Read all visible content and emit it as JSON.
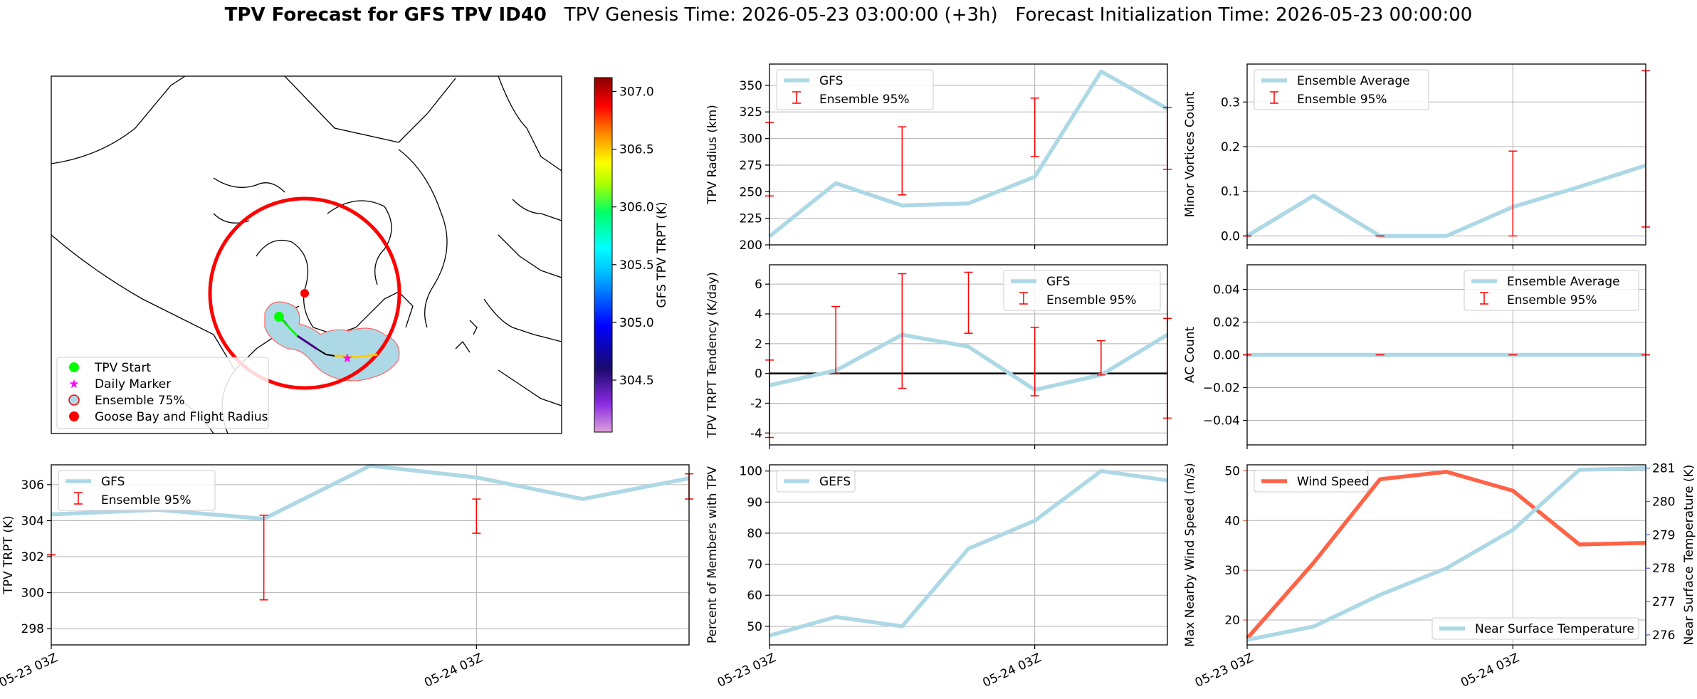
{
  "figure": {
    "title_bold": "TPV Forecast for GFS TPV ID40",
    "title_rest": "   TPV Genesis Time: 2026-05-23 03:00:00 (+3h)   Forecast Initialization Time: 2026-05-23 00:00:00",
    "x_ticks": [
      "05-23 03Z",
      "05-24 03Z"
    ],
    "colors": {
      "gfs": "#add8e6",
      "ensemble": "#ff0000",
      "wind": "#ff6347",
      "temp_axis": "#4169e1"
    }
  },
  "map": {
    "colorbar_label": "GFS TPV TRPT (K)",
    "colorbar_ticks": [
      "307.0",
      "306.5",
      "306.0",
      "305.5",
      "305.0",
      "304.5"
    ],
    "colorbar_range": [
      304.05,
      307.12
    ],
    "legend": [
      "TPV Start",
      "Daily Marker",
      "Ensemble 75%",
      "Goose Bay and Flight Radius"
    ]
  },
  "chart_data": [
    {
      "id": "radius",
      "type": "line",
      "ylabel": "TPV Radius (km)",
      "ylim": [
        200,
        370
      ],
      "y_ticks": [
        200,
        225,
        250,
        275,
        300,
        325,
        350
      ],
      "legend": [
        "GFS",
        "Ensemble 95%"
      ],
      "x": [
        0,
        1,
        2,
        3,
        4,
        5,
        6
      ],
      "series": [
        {
          "name": "GFS",
          "values": [
            208,
            258,
            237,
            239,
            264,
            363,
            328
          ]
        }
      ],
      "errorbars": [
        {
          "x": 0,
          "low": 246,
          "high": 315
        },
        {
          "x": 2,
          "low": 247,
          "high": 311
        },
        {
          "x": 4,
          "low": 283,
          "high": 338
        },
        {
          "x": 6,
          "low": 271,
          "high": 329
        }
      ]
    },
    {
      "id": "minor",
      "type": "line",
      "ylabel": "Minor Vortices Count",
      "ylim": [
        -0.02,
        0.385
      ],
      "y_ticks": [
        "0.0",
        "0.1",
        "0.2",
        "0.3"
      ],
      "y_tick_values": [
        0,
        0.1,
        0.2,
        0.3
      ],
      "legend": [
        "Ensemble Average",
        "Ensemble 95%"
      ],
      "x": [
        0,
        1,
        2,
        3,
        4,
        5,
        6
      ],
      "series": [
        {
          "name": "Ensemble Average",
          "values": [
            0.0,
            0.09,
            0.0,
            0.0,
            0.065,
            0.11,
            0.158
          ]
        }
      ],
      "errorbars": [
        {
          "x": 0,
          "low": 0,
          "high": 0
        },
        {
          "x": 2,
          "low": 0,
          "high": 0
        },
        {
          "x": 4,
          "low": 0,
          "high": 0.19
        },
        {
          "x": 6,
          "low": 0.02,
          "high": 0.37
        }
      ]
    },
    {
      "id": "tendency",
      "type": "line",
      "ylabel": "TPV TRPT Tendency (K/day)",
      "ylim": [
        -4.8,
        7.3
      ],
      "y_ticks": [
        -4,
        -2,
        0,
        2,
        4,
        6
      ],
      "legend": [
        "GFS",
        "Ensemble 95%"
      ],
      "x": [
        0,
        1,
        2,
        3,
        4,
        5,
        6
      ],
      "series": [
        {
          "name": "GFS",
          "values": [
            -0.8,
            0.2,
            2.6,
            1.8,
            -1.1,
            -0.1,
            2.6
          ]
        }
      ],
      "errorbars": [
        {
          "x": 0,
          "low": -4.3,
          "high": 0.9
        },
        {
          "x": 1,
          "low": 0.0,
          "high": 4.5
        },
        {
          "x": 2,
          "low": -1.0,
          "high": 6.7
        },
        {
          "x": 3,
          "low": 2.7,
          "high": 6.8
        },
        {
          "x": 4,
          "low": -1.5,
          "high": 3.1
        },
        {
          "x": 5,
          "low": -0.1,
          "high": 2.2
        },
        {
          "x": 6,
          "low": -3.0,
          "high": 3.7
        }
      ]
    },
    {
      "id": "ac",
      "type": "line",
      "ylabel": "AC Count",
      "ylim": [
        -0.055,
        0.055
      ],
      "y_ticks": [
        "−0.04",
        "−0.02",
        "0.00",
        "0.02",
        "0.04"
      ],
      "y_tick_values": [
        -0.04,
        -0.02,
        0,
        0.02,
        0.04
      ],
      "legend": [
        "Ensemble Average",
        "Ensemble 95%"
      ],
      "x": [
        0,
        1,
        2,
        3,
        4,
        5,
        6
      ],
      "series": [
        {
          "name": "Ensemble Average",
          "values": [
            0,
            0,
            0,
            0,
            0,
            0,
            0
          ]
        }
      ],
      "errorbars": [
        {
          "x": 0,
          "low": 0,
          "high": 0
        },
        {
          "x": 2,
          "low": 0,
          "high": 0
        },
        {
          "x": 4,
          "low": 0,
          "high": 0
        },
        {
          "x": 6,
          "low": 0,
          "high": 0
        }
      ]
    },
    {
      "id": "trpt",
      "type": "line",
      "ylabel": "TPV TRPT (K)",
      "ylim": [
        297.1,
        307.1
      ],
      "y_ticks": [
        298,
        300,
        302,
        304,
        306
      ],
      "legend": [
        "GFS",
        "Ensemble 95%"
      ],
      "x": [
        0,
        1,
        2,
        3,
        4,
        5,
        6
      ],
      "series": [
        {
          "name": "GFS",
          "values": [
            304.35,
            304.6,
            304.1,
            307.05,
            306.4,
            305.2,
            306.35
          ]
        }
      ],
      "errorbars": [
        {
          "x": 0,
          "low": 302.1,
          "high": 302.1
        },
        {
          "x": 2,
          "low": 299.6,
          "high": 304.3
        },
        {
          "x": 4,
          "low": 303.3,
          "high": 305.2
        },
        {
          "x": 6,
          "low": 305.2,
          "high": 306.6
        }
      ]
    },
    {
      "id": "percent",
      "type": "line",
      "ylabel": "Percent of Members with TPV",
      "ylim": [
        44,
        102
      ],
      "y_ticks": [
        50,
        60,
        70,
        80,
        90,
        100
      ],
      "legend": [
        "GEFS"
      ],
      "x": [
        0,
        1,
        2,
        3,
        4,
        5,
        6
      ],
      "series": [
        {
          "name": "GEFS",
          "values": [
            47,
            53,
            50,
            75,
            84,
            100,
            97
          ]
        }
      ],
      "errorbars": []
    },
    {
      "id": "wind",
      "type": "line",
      "ylabel": "Max Nearby Wind Speed (m/s)",
      "ylim": [
        15,
        51.2
      ],
      "y_ticks": [
        20,
        30,
        40,
        50
      ],
      "ylabel2": "Near Surface Temperature (K)",
      "ylim2": [
        275.7,
        281.1
      ],
      "y2_ticks": [
        276,
        277,
        278,
        279,
        280,
        281
      ],
      "legend": [
        "Wind Speed"
      ],
      "legend2": [
        "Near Surface Temperature"
      ],
      "x": [
        0,
        1,
        2,
        3,
        4,
        5,
        6
      ],
      "series": [
        {
          "name": "Wind Speed",
          "values": [
            16.3,
            31.5,
            48.3,
            49.8,
            46.0,
            35.2,
            35.5
          ],
          "axis": "left"
        },
        {
          "name": "Near Surface Temperature",
          "values": [
            275.85,
            276.25,
            277.2,
            278.0,
            279.15,
            280.95,
            281.0
          ],
          "axis": "right"
        }
      ],
      "errorbars": []
    }
  ]
}
